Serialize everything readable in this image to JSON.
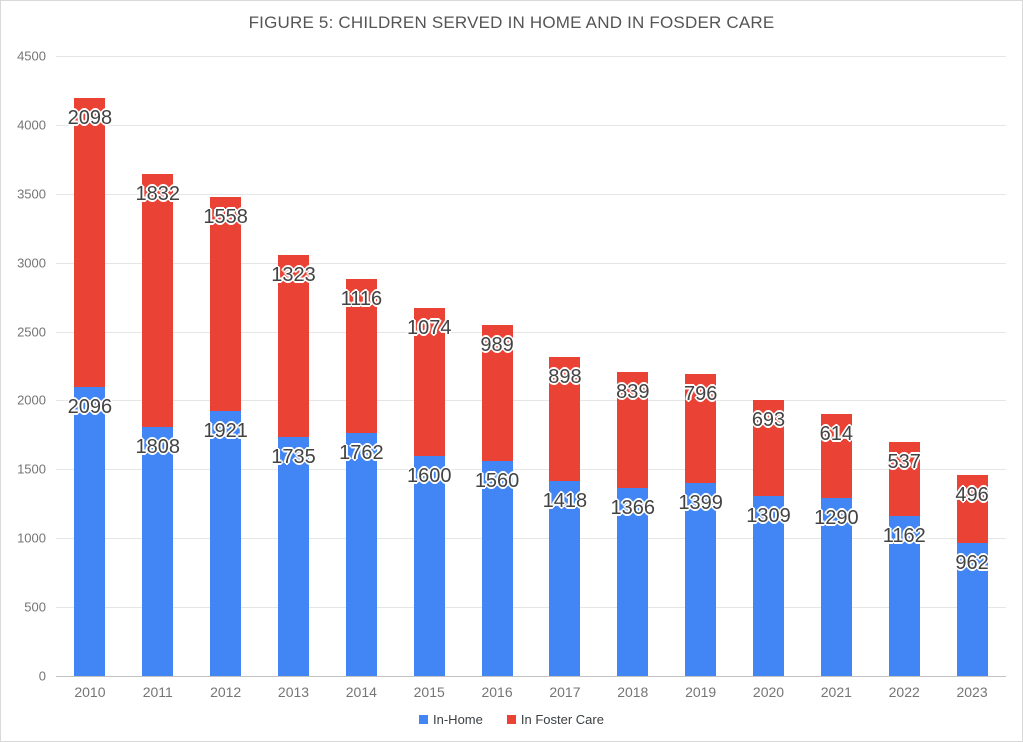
{
  "chart_data": {
    "type": "bar",
    "stacked": true,
    "title": "FIGURE 5: CHILDREN SERVED IN HOME AND IN FOSDER CARE",
    "categories": [
      "2010",
      "2011",
      "2012",
      "2013",
      "2014",
      "2015",
      "2016",
      "2017",
      "2018",
      "2019",
      "2020",
      "2021",
      "2022",
      "2023"
    ],
    "series": [
      {
        "name": "In-Home",
        "color": "#4285F4",
        "values": [
          2096,
          1808,
          1921,
          1735,
          1762,
          1600,
          1560,
          1418,
          1366,
          1399,
          1309,
          1290,
          1162,
          962
        ]
      },
      {
        "name": "In Foster Care",
        "color": "#EA4335",
        "values": [
          2098,
          1832,
          1558,
          1323,
          1116,
          1074,
          989,
          898,
          839,
          796,
          693,
          614,
          537,
          496
        ]
      }
    ],
    "xlabel": "",
    "ylabel": "",
    "ylim": [
      0,
      4500
    ],
    "yticks": [
      0,
      500,
      1000,
      1500,
      2000,
      2500,
      3000,
      3500,
      4000,
      4500
    ],
    "grid": true,
    "data_labels": true,
    "legend_position": "bottom"
  },
  "colors": {
    "title_text": "#555555",
    "axis_text": "#757575",
    "data_label_text": "#434343",
    "gridline": "#e6e6e6",
    "border": "#d9d9d9"
  }
}
